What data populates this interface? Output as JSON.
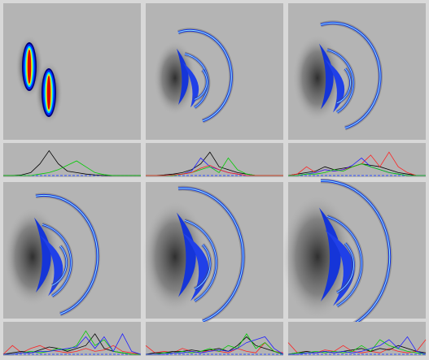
{
  "chart_data": [
    {
      "type": "line",
      "x": [
        0,
        0.0667,
        0.1333,
        0.2,
        0.2667,
        0.3333,
        0.4,
        0.4667,
        0.5333,
        0.6,
        0.6667,
        0.7333,
        0.8,
        0.8667,
        0.9333,
        1
      ],
      "ylim": [
        0,
        1
      ],
      "series": [
        {
          "color": "#000000",
          "values": [
            0,
            0,
            0.02,
            0.1,
            0.4,
            0.85,
            0.4,
            0.15,
            0.1,
            0.05,
            0.02,
            0,
            0,
            0,
            0,
            0
          ]
        },
        {
          "color": "#00cc00",
          "values": [
            0,
            0,
            0,
            0,
            0.05,
            0.1,
            0.2,
            0.35,
            0.5,
            0.3,
            0.1,
            0.03,
            0,
            0,
            0,
            0
          ]
        }
      ]
    },
    {
      "type": "line",
      "x": [
        0,
        0.0667,
        0.1333,
        0.2,
        0.2667,
        0.3333,
        0.4,
        0.4667,
        0.5333,
        0.6,
        0.6667,
        0.7333,
        0.8,
        0.8667,
        0.9333,
        1
      ],
      "ylim": [
        0,
        1
      ],
      "series": [
        {
          "color": "#000000",
          "values": [
            0,
            0,
            0.02,
            0.05,
            0.1,
            0.2,
            0.4,
            0.8,
            0.3,
            0.2,
            0.1,
            0.05,
            0,
            0,
            0,
            0
          ]
        },
        {
          "color": "#2020ff",
          "values": [
            0,
            0,
            0,
            0.02,
            0.05,
            0.15,
            0.6,
            0.3,
            0.2,
            0.1,
            0.05,
            0,
            0,
            0,
            0,
            0
          ]
        },
        {
          "color": "#00cc00",
          "values": [
            0,
            0,
            0,
            0,
            0.05,
            0.1,
            0.2,
            0.3,
            0.1,
            0.6,
            0.2,
            0.05,
            0,
            0,
            0,
            0
          ]
        },
        {
          "color": "#ff2020",
          "values": [
            0,
            0,
            0,
            0.02,
            0.05,
            0.1,
            0.25,
            0.35,
            0.2,
            0.1,
            0.05,
            0,
            0,
            0,
            0,
            0
          ]
        }
      ]
    },
    {
      "type": "line",
      "x": [
        0,
        0.0667,
        0.1333,
        0.2,
        0.2667,
        0.3333,
        0.4,
        0.4667,
        0.5333,
        0.6,
        0.6667,
        0.7333,
        0.8,
        0.8667,
        0.9333,
        1
      ],
      "ylim": [
        0,
        1
      ],
      "series": [
        {
          "color": "#000000",
          "values": [
            0,
            0.05,
            0.1,
            0.15,
            0.3,
            0.2,
            0.25,
            0.3,
            0.4,
            0.35,
            0.3,
            0.2,
            0.1,
            0.05,
            0,
            0
          ]
        },
        {
          "color": "#ff2020",
          "values": [
            0,
            0.05,
            0.3,
            0.1,
            0.2,
            0.15,
            0.2,
            0.3,
            0.4,
            0.7,
            0.3,
            0.8,
            0.3,
            0.1,
            0,
            0
          ]
        },
        {
          "color": "#2020ff",
          "values": [
            0,
            0,
            0.05,
            0.1,
            0.2,
            0.15,
            0.2,
            0.35,
            0.6,
            0.3,
            0.2,
            0.1,
            0.05,
            0,
            0,
            0
          ]
        },
        {
          "color": "#00cc00",
          "values": [
            0,
            0,
            0.05,
            0.05,
            0.1,
            0.2,
            0.15,
            0.3,
            0.4,
            0.3,
            0.2,
            0.1,
            0.05,
            0,
            0,
            0
          ]
        }
      ]
    },
    {
      "type": "line",
      "x": [
        0,
        0.0667,
        0.1333,
        0.2,
        0.2667,
        0.3333,
        0.4,
        0.4667,
        0.5333,
        0.6,
        0.6667,
        0.7333,
        0.8,
        0.8667,
        0.9333,
        1
      ],
      "ylim": [
        0,
        1
      ],
      "series": [
        {
          "color": "#ff2020",
          "values": [
            0,
            0.3,
            0.05,
            0.2,
            0.3,
            0.15,
            0.1,
            0.05,
            0.1,
            0.2,
            0.1,
            0.15,
            0.3,
            0.1,
            0.05,
            0
          ]
        },
        {
          "color": "#000000",
          "values": [
            0,
            0.05,
            0.1,
            0.05,
            0.15,
            0.25,
            0.2,
            0.1,
            0.2,
            0.3,
            0.7,
            0.2,
            0.1,
            0.05,
            0,
            0
          ]
        },
        {
          "color": "#00cc00",
          "values": [
            0,
            0,
            0.05,
            0.1,
            0.05,
            0.1,
            0.2,
            0.15,
            0.3,
            0.8,
            0.3,
            0.5,
            0.1,
            0.05,
            0,
            0
          ]
        },
        {
          "color": "#2020ff",
          "values": [
            0,
            0,
            0.05,
            0.05,
            0.1,
            0.1,
            0.15,
            0.2,
            0.25,
            0.6,
            0.2,
            0.6,
            0.1,
            0.7,
            0.1,
            0
          ]
        }
      ]
    },
    {
      "type": "line",
      "x": [
        0,
        0.0667,
        0.1333,
        0.2,
        0.2667,
        0.3333,
        0.4,
        0.4667,
        0.5333,
        0.6,
        0.6667,
        0.7333,
        0.8,
        0.8667,
        0.9333,
        1
      ],
      "ylim": [
        0,
        1
      ],
      "series": [
        {
          "color": "#ff2020",
          "values": [
            0.3,
            0.05,
            0.1,
            0.05,
            0.2,
            0.1,
            0.05,
            0.15,
            0.1,
            0.05,
            0.2,
            0.1,
            0.05,
            0.4,
            0.1,
            0.05
          ]
        },
        {
          "color": "#000000",
          "values": [
            0,
            0.05,
            0.05,
            0.1,
            0.1,
            0.15,
            0.1,
            0.15,
            0.2,
            0.1,
            0.3,
            0.6,
            0.3,
            0.2,
            0.1,
            0
          ]
        },
        {
          "color": "#00cc00",
          "values": [
            0,
            0,
            0.05,
            0.05,
            0.1,
            0.05,
            0.1,
            0.2,
            0.1,
            0.3,
            0.2,
            0.7,
            0.2,
            0.4,
            0.1,
            0
          ]
        },
        {
          "color": "#2020ff",
          "values": [
            0,
            0,
            0,
            0.05,
            0.05,
            0.1,
            0.05,
            0.1,
            0.15,
            0.1,
            0.2,
            0.4,
            0.5,
            0.6,
            0.2,
            0
          ]
        }
      ]
    },
    {
      "type": "line",
      "x": [
        0,
        0.0667,
        0.1333,
        0.2,
        0.2667,
        0.3333,
        0.4,
        0.4667,
        0.5333,
        0.6,
        0.6667,
        0.7333,
        0.8,
        0.8667,
        0.9333,
        1
      ],
      "ylim": [
        0,
        1
      ],
      "series": [
        {
          "color": "#ff2020",
          "values": [
            0.4,
            0.05,
            0.1,
            0.05,
            0.15,
            0.1,
            0.3,
            0.1,
            0.05,
            0.1,
            0.05,
            0.2,
            0.1,
            0.05,
            0.1,
            0.5
          ]
        },
        {
          "color": "#000000",
          "values": [
            0,
            0.05,
            0.1,
            0.05,
            0.1,
            0.05,
            0.1,
            0.15,
            0.2,
            0.1,
            0.2,
            0.15,
            0.3,
            0.2,
            0.1,
            0.05
          ]
        },
        {
          "color": "#00cc00",
          "values": [
            0,
            0.05,
            0.05,
            0.1,
            0.05,
            0.1,
            0.05,
            0.1,
            0.3,
            0.1,
            0.5,
            0.3,
            0.2,
            0.1,
            0.05,
            0
          ]
        },
        {
          "color": "#2020ff",
          "values": [
            0,
            0,
            0.05,
            0.05,
            0.1,
            0.05,
            0.1,
            0.05,
            0.1,
            0.2,
            0.3,
            0.5,
            0.2,
            0.6,
            0.1,
            0
          ]
        }
      ]
    }
  ]
}
